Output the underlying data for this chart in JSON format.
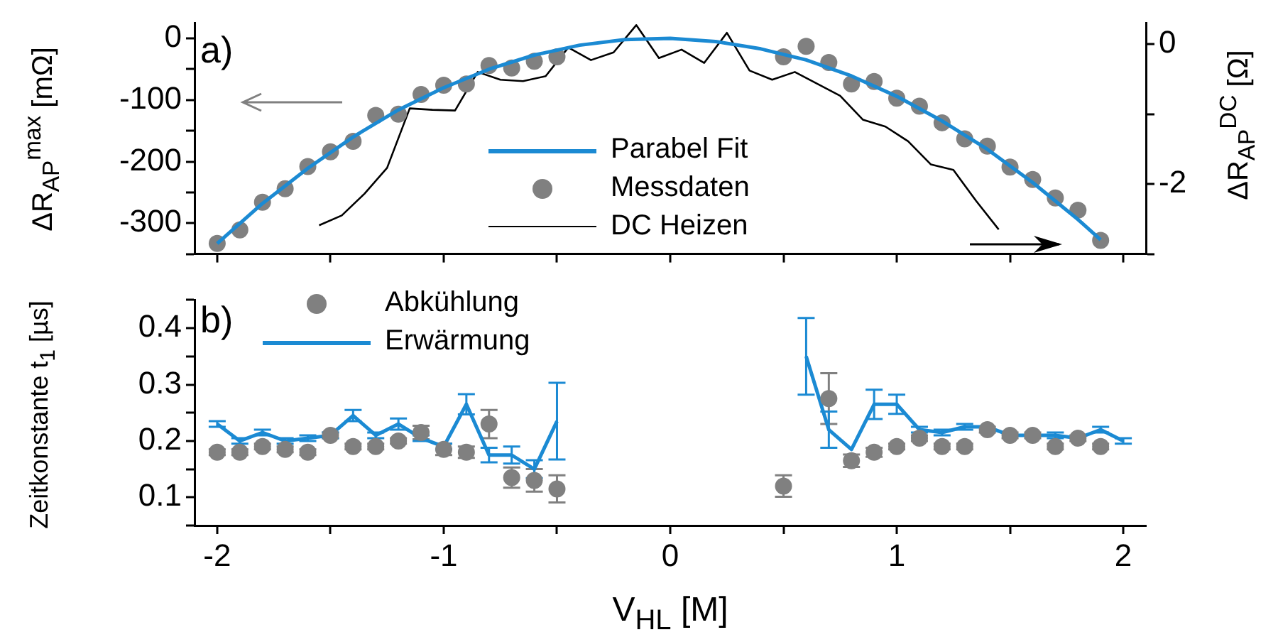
{
  "chart_data": [
    {
      "type": "line",
      "xlim": [
        -2.1,
        2.1
      ],
      "xticks": [
        {
          "value": -2,
          "label": null
        },
        {
          "value": -1.5,
          "label": null
        },
        {
          "value": -1,
          "label": null
        },
        {
          "value": -0.5,
          "label": null
        },
        {
          "value": 0,
          "label": null
        },
        {
          "value": 0.5,
          "label": null
        },
        {
          "value": 1,
          "label": null
        },
        {
          "value": 1.5,
          "label": null
        },
        {
          "value": 2,
          "label": null
        }
      ],
      "tick_labels": "y",
      "ylim": [
        -350,
        25
      ],
      "yticks": [
        0,
        {
          "value": -50,
          "label": null
        },
        -100,
        {
          "value": -150,
          "label": null
        },
        -200,
        {
          "value": -250,
          "label": null
        },
        -300,
        {
          "value": -350,
          "label": null
        }
      ],
      "y2lim": [
        -3,
        0.3
      ],
      "y2ticks": [
        0,
        {
          "value": -1,
          "label": null
        },
        -2,
        {
          "value": -3,
          "label": null
        }
      ],
      "ylabel": "ΔR$_{AP}$$^{max}$ [mΩ]",
      "y2label": "ΔR$_{AP}$$^{DC}$ [Ω]",
      "legend": "bottom",
      "grid": false,
      "annotations": [
        "a)"
      ],
      "series": [
        {
          "name": "Parabel Fit",
          "type": "line",
          "color": "#1b8ad3",
          "marker": "none",
          "x": [
            -2,
            -1.8,
            -1.6,
            -1.4,
            -1.2,
            -1,
            -0.8,
            -0.6,
            -0.4,
            -0.2,
            0,
            0.2,
            0.4,
            0.6,
            0.8,
            1,
            1.2,
            1.4,
            1.6,
            1.8,
            1.9
          ],
          "values": [
            -333,
            -268,
            -211,
            -160,
            -116,
            -80,
            -50,
            -27,
            -11,
            -2,
            0,
            -5,
            -17,
            -35,
            -61,
            -94,
            -134,
            -180,
            -234,
            -294,
            -327
          ]
        },
        {
          "name": "Messdaten",
          "type": "scatter",
          "color": "#808080",
          "marker": "circle",
          "x": [
            -2,
            -1.9,
            -1.8,
            -1.7,
            -1.6,
            -1.5,
            -1.4,
            -1.3,
            -1.2,
            -1.1,
            -1,
            -0.9,
            -0.8,
            -0.7,
            -0.6,
            -0.5,
            0.5,
            0.6,
            0.7,
            0.8,
            0.9,
            1,
            1.1,
            1.2,
            1.3,
            1.4,
            1.5,
            1.6,
            1.7,
            1.8,
            1.9
          ],
          "values": [
            -333,
            -311,
            -266,
            -244,
            -208,
            -184,
            -167,
            -125,
            -123,
            -91,
            -76,
            -74,
            -44,
            -48,
            -37,
            -30,
            -30,
            -13,
            -39,
            -74,
            -70,
            -97,
            -110,
            -137,
            -163,
            -175,
            -209,
            -229,
            -259,
            -279,
            -328
          ]
        },
        {
          "name": "DC Heizen",
          "type": "line",
          "axis": "y2",
          "color": "#000000",
          "marker": "none",
          "x": [
            -1.55,
            -1.45,
            -1.35,
            -1.25,
            -1.15,
            -1.05,
            -0.95,
            -0.85,
            -0.75,
            -0.65,
            -0.55,
            -0.45,
            -0.35,
            -0.25,
            -0.15,
            -0.05,
            0.05,
            0.15,
            0.25,
            0.35,
            0.45,
            0.55,
            0.65,
            0.75,
            0.85,
            0.95,
            1.05,
            1.15,
            1.25,
            1.35,
            1.45
          ],
          "values": [
            -2.59,
            -2.45,
            -2.14,
            -1.77,
            -0.92,
            -0.94,
            -0.95,
            -0.4,
            -0.51,
            -0.53,
            -0.46,
            -0.05,
            -0.23,
            -0.12,
            0.27,
            -0.2,
            -0.08,
            -0.27,
            0.16,
            -0.38,
            -0.51,
            -0.4,
            -0.57,
            -0.74,
            -1.08,
            -1.18,
            -1.39,
            -1.72,
            -1.8,
            -2.24,
            -2.65
          ]
        }
      ]
    },
    {
      "type": "line",
      "xlim": [
        -2.1,
        2.1
      ],
      "xticks": [
        -2,
        {
          "value": -1.5,
          "label": null
        },
        -1,
        {
          "value": -0.5,
          "label": null
        },
        0,
        {
          "value": 0.5,
          "label": null
        },
        1,
        {
          "value": 1.5,
          "label": null
        },
        2
      ],
      "ylim": [
        0.05,
        0.45
      ],
      "yticks": [
        {
          "value": 0.05,
          "label": null
        },
        0.1,
        {
          "value": 0.15,
          "label": null
        },
        0.2,
        {
          "value": 0.25,
          "label": null
        },
        0.3,
        {
          "value": 0.35,
          "label": null
        },
        0.4,
        {
          "value": 0.45,
          "label": null
        }
      ],
      "xlabel": "V$_{HL}$ [M]",
      "ylabel": "Zeitkonstante t$_{1}$ [µs]",
      "legend": "top left",
      "grid": false,
      "annotations": [
        "b)"
      ],
      "series": [
        {
          "name": "Abkühlung",
          "type": "scatter",
          "color": "#808080",
          "marker": "circle",
          "x": [
            -2,
            -1.9,
            -1.8,
            -1.7,
            -1.6,
            -1.5,
            -1.4,
            -1.3,
            -1.2,
            -1.1,
            -1,
            -0.9,
            -0.8,
            -0.7,
            -0.6,
            -0.5,
            0.5,
            0.7,
            0.8,
            0.9,
            1,
            1.1,
            1.2,
            1.3,
            1.4,
            1.5,
            1.6,
            1.7,
            1.8,
            1.9
          ],
          "values": [
            0.18,
            0.18,
            0.19,
            0.185,
            0.18,
            0.21,
            0.19,
            0.19,
            0.2,
            0.215,
            0.185,
            0.18,
            0.23,
            0.135,
            0.13,
            0.115,
            0.12,
            0.275,
            0.165,
            0.18,
            0.19,
            0.205,
            0.19,
            0.19,
            0.22,
            0.21,
            0.21,
            0.19,
            0.205,
            0.19
          ],
          "errors": [
            0.005,
            0.005,
            0.005,
            0.005,
            0.005,
            0.005,
            0.005,
            0.005,
            0.005,
            0.012,
            0.01,
            0.01,
            0.025,
            0.018,
            0.02,
            0.024,
            0.019,
            0.045,
            0.011,
            0.008,
            0.005,
            0.005,
            0.005,
            0.005,
            0.005,
            0.005,
            0.005,
            0.005,
            0.005,
            0.005
          ]
        },
        {
          "name": "Erwärmung",
          "type": "line",
          "color": "#1b8ad3",
          "marker": "none",
          "x": [
            -2,
            -1.9,
            -1.8,
            -1.7,
            -1.6,
            -1.5,
            -1.4,
            -1.3,
            -1.2,
            -1.1,
            -1,
            -0.9,
            -0.8,
            -0.7,
            -0.6,
            -0.5,
            0,
            0.6,
            0.7,
            0.8,
            0.9,
            1,
            1.1,
            1.2,
            1.3,
            1.4,
            1.5,
            1.6,
            1.7,
            1.8,
            1.9,
            2
          ],
          "values": [
            0.23,
            0.2,
            0.215,
            0.2,
            0.205,
            0.21,
            0.245,
            0.21,
            0.23,
            0.205,
            0.19,
            0.265,
            0.175,
            0.175,
            0.15,
            0.235,
            null,
            0.35,
            0.22,
            0.185,
            0.265,
            0.265,
            0.22,
            0.215,
            0.225,
            0.225,
            0.21,
            0.21,
            0.21,
            0.205,
            0.22,
            0.2
          ],
          "errors": [
            0.005,
            0.005,
            0.005,
            0.005,
            0.005,
            0.005,
            0.01,
            0.005,
            0.01,
            0.005,
            0.005,
            0.018,
            0.013,
            0.015,
            0.016,
            0.068,
            null,
            0.068,
            0.032,
            null,
            0.026,
            0.017,
            0.005,
            0.005,
            0.005,
            null,
            null,
            null,
            0.005,
            null,
            0.005,
            0.005
          ]
        }
      ]
    }
  ]
}
